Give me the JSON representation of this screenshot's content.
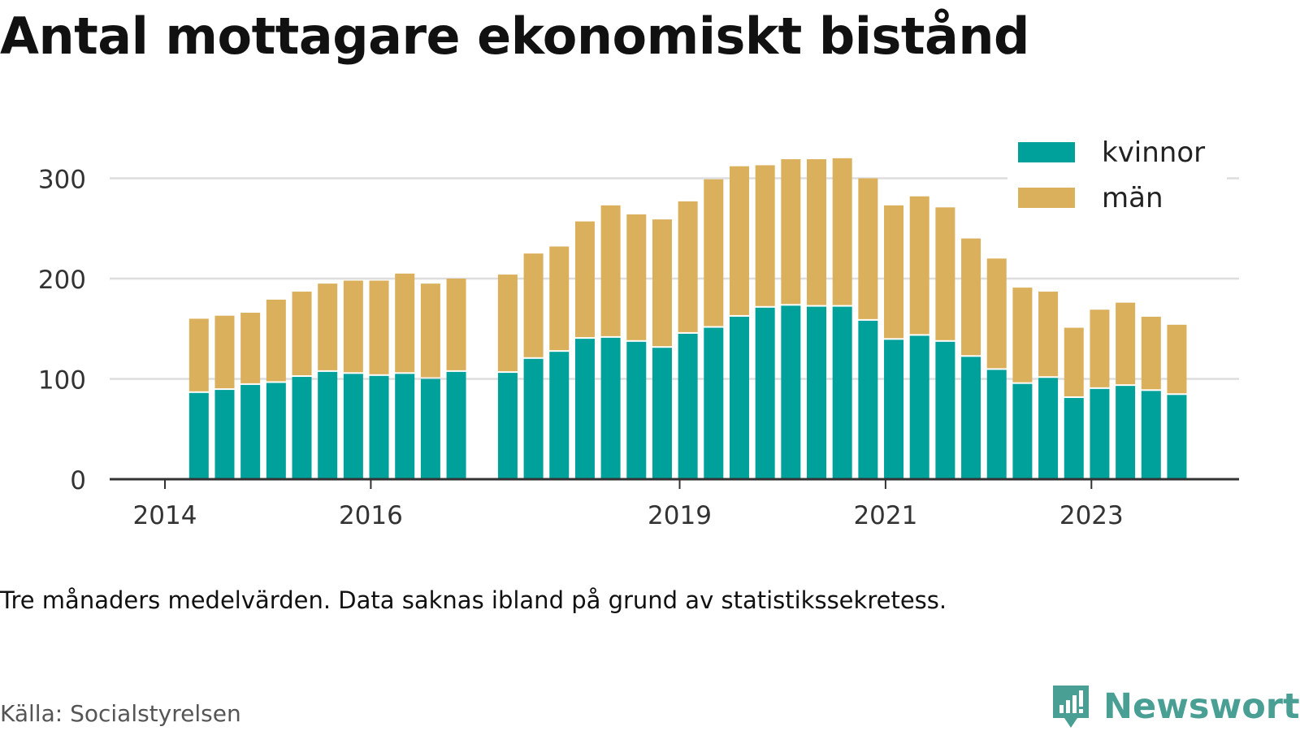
{
  "title": "Antal mottagare ekonomiskt bistånd",
  "note": "Tre månaders medelvärden. Data saknas ibland på grund av statistikssekretess.",
  "source": "Källa: Socialstyrelsen",
  "brand": "Newsworthy",
  "colors": {
    "kvinnor": "#00a19a",
    "man": "#dbb05c",
    "grid": "#dddddd",
    "axis": "#333333",
    "brand": "#4a9f95"
  },
  "chart_data": {
    "type": "bar",
    "stacked": true,
    "ylim": [
      0,
      340
    ],
    "yticks": [
      0,
      100,
      200,
      300
    ],
    "xticks": [
      {
        "label": "2014",
        "x": 2014.0
      },
      {
        "label": "2016",
        "x": 2016.0
      },
      {
        "label": "2019",
        "x": 2019.0
      },
      {
        "label": "2021",
        "x": 2021.0
      },
      {
        "label": "2023",
        "x": 2023.0
      }
    ],
    "x": [
      2014.33,
      2014.58,
      2014.83,
      2015.08,
      2015.33,
      2015.58,
      2015.83,
      2016.08,
      2016.33,
      2016.58,
      2016.83,
      2017.33,
      2017.58,
      2017.83,
      2018.08,
      2018.33,
      2018.58,
      2018.83,
      2019.08,
      2019.33,
      2019.58,
      2019.83,
      2020.08,
      2020.33,
      2020.58,
      2020.83,
      2021.08,
      2021.33,
      2021.58,
      2021.83,
      2022.08,
      2022.33,
      2022.58,
      2022.83,
      2023.08,
      2023.33,
      2023.58,
      2023.83
    ],
    "series": [
      {
        "name": "kvinnor",
        "values": [
          86,
          89,
          94,
          96,
          102,
          107,
          105,
          103,
          105,
          100,
          107,
          106,
          120,
          127,
          140,
          141,
          137,
          131,
          145,
          151,
          162,
          171,
          173,
          172,
          172,
          158,
          139,
          143,
          137,
          122,
          109,
          95,
          101,
          81,
          90,
          93,
          88,
          84
        ]
      },
      {
        "name": "män",
        "values": [
          74,
          74,
          72,
          83,
          85,
          88,
          93,
          95,
          100,
          95,
          93,
          98,
          105,
          105,
          117,
          132,
          127,
          128,
          132,
          148,
          150,
          142,
          146,
          147,
          148,
          142,
          134,
          139,
          134,
          118,
          111,
          96,
          86,
          70,
          79,
          83,
          74,
          70
        ]
      }
    ],
    "legend": {
      "position": "top-right",
      "entries": [
        "kvinnor",
        "män"
      ]
    }
  }
}
